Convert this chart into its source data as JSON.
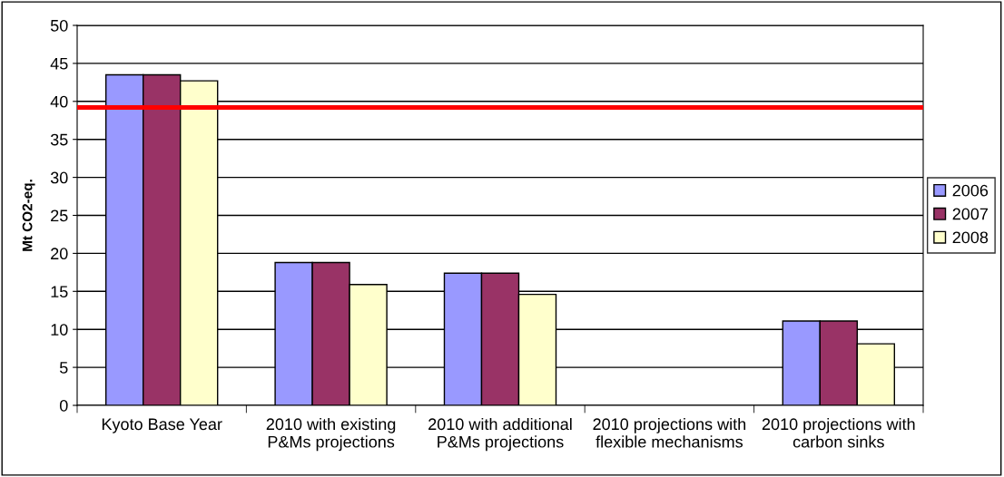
{
  "chart_data": {
    "type": "bar",
    "ylabel": "Mt CO2-eq.",
    "categories": [
      "Kyoto Base Year",
      "2010 with existing\nP&Ms projections",
      "2010 with additional\nP&Ms projections",
      "2010 projections with\nflexible mechanisms",
      "2010 projections with\ncarbon sinks"
    ],
    "series": [
      {
        "name": "2006",
        "color": "#9999ff",
        "values": [
          43.5,
          18.8,
          17.4,
          null,
          11.1
        ]
      },
      {
        "name": "2007",
        "color": "#993366",
        "values": [
          43.5,
          18.8,
          17.4,
          null,
          11.1
        ]
      },
      {
        "name": "2008",
        "color": "#ffffcc",
        "values": [
          42.7,
          15.9,
          14.6,
          null,
          8.1
        ]
      }
    ],
    "ylim": [
      0,
      50
    ],
    "yticks": [
      0,
      5,
      10,
      15,
      20,
      25,
      30,
      35,
      40,
      45,
      50
    ],
    "ref_lines": [
      {
        "axis": "y",
        "value": 39.2,
        "color": "#ff0000"
      }
    ],
    "grid": "y",
    "legend": "right"
  }
}
